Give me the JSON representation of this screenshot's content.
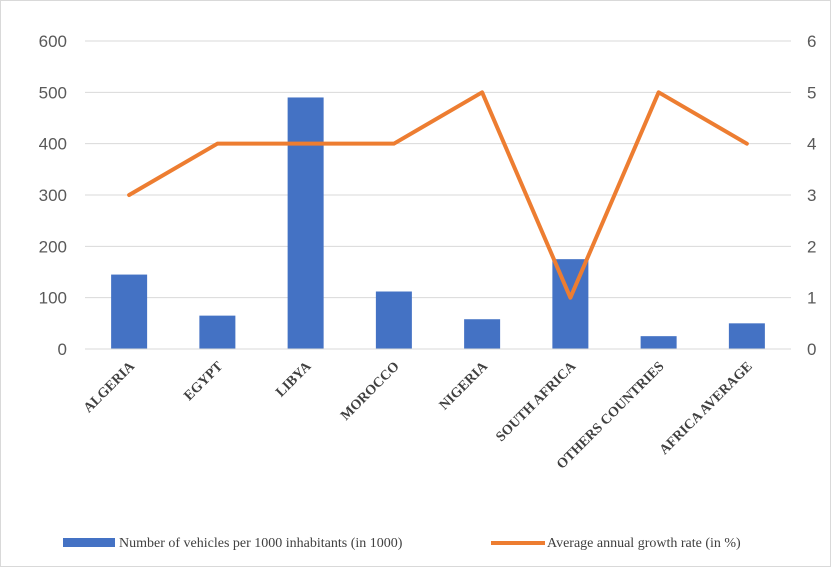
{
  "chart_data": {
    "type": "bar",
    "categories": [
      "ALGERIA",
      "EGYPT",
      "LIBYA",
      "MOROCCO",
      "NIGERIA",
      "SOUTH AFRICA",
      "OTHERS COUNTRIES",
      "AFRICA AVERAGE"
    ],
    "series": [
      {
        "name": "Number of vehicles per 1000 inhabitants (in 1000)",
        "type": "bar",
        "axis": "left",
        "color": "#4472c4",
        "values": [
          145,
          65,
          490,
          112,
          58,
          175,
          25,
          50
        ]
      },
      {
        "name": "Average annual growth rate (in %)",
        "type": "line",
        "axis": "right",
        "color": "#ed7d31",
        "values": [
          3,
          4,
          4,
          4,
          5,
          1,
          5,
          4
        ]
      }
    ],
    "y_left": {
      "min": 0,
      "max": 600,
      "ticks": [
        0,
        100,
        200,
        300,
        400,
        500,
        600
      ]
    },
    "y_right": {
      "min": 0,
      "max": 6,
      "ticks": [
        0,
        1,
        2,
        3,
        4,
        5,
        6
      ]
    },
    "grid": true,
    "legend_position": "bottom"
  }
}
